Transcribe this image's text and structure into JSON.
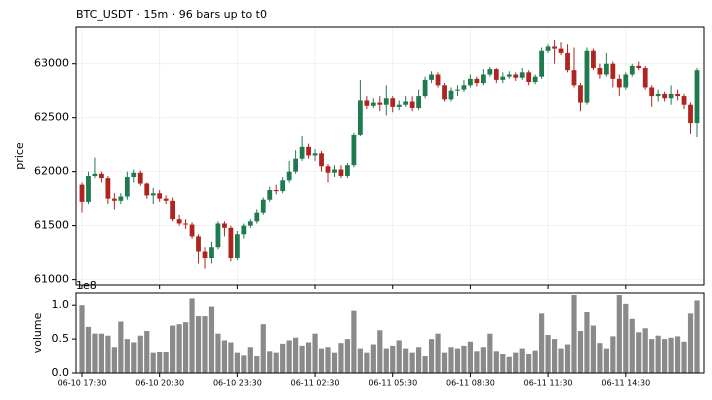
{
  "chart_data": {
    "type": "candlestick",
    "title": "BTC_USDT  ·  15m  ·  96 bars up to t0",
    "ylabel": "price",
    "categories": [
      "06-10 17:30",
      null,
      null,
      null,
      null,
      null,
      null,
      null,
      null,
      null,
      null,
      null,
      "06-10 20:30",
      null,
      null,
      null,
      null,
      null,
      null,
      null,
      null,
      null,
      null,
      null,
      "06-10 23:30",
      null,
      null,
      null,
      null,
      null,
      null,
      null,
      null,
      null,
      null,
      null,
      "06-11 02:30",
      null,
      null,
      null,
      null,
      null,
      null,
      null,
      null,
      null,
      null,
      null,
      "06-11 05:30",
      null,
      null,
      null,
      null,
      null,
      null,
      null,
      null,
      null,
      null,
      null,
      "06-11 08:30",
      null,
      null,
      null,
      null,
      null,
      null,
      null,
      null,
      null,
      null,
      null,
      "06-11 11:30",
      null,
      null,
      null,
      null,
      null,
      null,
      null,
      null,
      null,
      null,
      null,
      "06-11 14:30",
      null,
      null,
      null,
      null,
      null,
      null,
      null,
      null,
      null,
      null,
      null
    ],
    "open": [
      61880,
      61720,
      61960,
      61980,
      61940,
      61750,
      61730,
      61770,
      61950,
      61990,
      61890,
      61780,
      61800,
      61750,
      61730,
      61560,
      61520,
      61510,
      61400,
      61260,
      61200,
      61300,
      61520,
      61480,
      61200,
      61420,
      61500,
      61540,
      61620,
      61740,
      61830,
      61820,
      61920,
      62000,
      62120,
      62230,
      62150,
      62170,
      62050,
      61990,
      62020,
      61960,
      62060,
      62340,
      62660,
      62610,
      62640,
      62620,
      62680,
      62600,
      62620,
      62650,
      62590,
      62700,
      62850,
      62900,
      62800,
      62670,
      62750,
      62760,
      62800,
      62860,
      62820,
      62900,
      62950,
      62850,
      62880,
      62900,
      62870,
      62920,
      62830,
      62880,
      63120,
      63160,
      63140,
      63100,
      62940,
      62800,
      62640,
      63120,
      62960,
      62900,
      63000,
      62860,
      62780,
      62900,
      62980,
      62960,
      62780,
      62700,
      62720,
      62680,
      62720,
      62700,
      62620,
      62450
    ],
    "high": [
      61900,
      62000,
      62130,
      62000,
      61960,
      61800,
      61800,
      62000,
      62020,
      62010,
      61900,
      61850,
      61830,
      61780,
      61760,
      61600,
      61560,
      61530,
      61420,
      61300,
      61350,
      61540,
      61540,
      61500,
      61450,
      61520,
      61560,
      61650,
      61760,
      61860,
      61880,
      61950,
      62100,
      62200,
      62330,
      62260,
      62210,
      62190,
      62070,
      62060,
      62060,
      62080,
      62360,
      62850,
      62700,
      62680,
      62700,
      62800,
      62700,
      62660,
      62700,
      62700,
      62760,
      62880,
      62930,
      62920,
      62820,
      62780,
      62800,
      62850,
      62900,
      62880,
      62950,
      62970,
      62960,
      62920,
      62930,
      62920,
      62960,
      62940,
      62900,
      63150,
      63180,
      63220,
      63200,
      63180,
      63150,
      62820,
      63150,
      63140,
      63000,
      63100,
      63020,
      62900,
      62920,
      63000,
      63020,
      62980,
      62800,
      62760,
      62740,
      62800,
      62760,
      62720,
      62640,
      62960
    ],
    "low": [
      61620,
      61700,
      61940,
      61900,
      61700,
      61650,
      61700,
      61740,
      61900,
      61870,
      61750,
      61700,
      61720,
      61700,
      61540,
      61500,
      61470,
      61380,
      61150,
      61100,
      61150,
      61280,
      61400,
      61170,
      61180,
      61380,
      61480,
      61520,
      61600,
      61720,
      61790,
      61800,
      61900,
      61980,
      62100,
      62120,
      62100,
      62000,
      61900,
      61950,
      61940,
      61940,
      62040,
      62330,
      62580,
      62590,
      62560,
      62520,
      62550,
      62570,
      62600,
      62560,
      62570,
      62680,
      62820,
      62780,
      62650,
      62650,
      62700,
      62740,
      62780,
      62790,
      62800,
      62880,
      62820,
      62820,
      62860,
      62840,
      62850,
      62800,
      62810,
      62860,
      63100,
      63000,
      63080,
      62920,
      62780,
      62560,
      62620,
      62940,
      62860,
      62880,
      62780,
      62700,
      62760,
      62880,
      62940,
      62760,
      62600,
      62650,
      62650,
      62620,
      62660,
      62580,
      62350,
      62320
    ],
    "close": [
      61720,
      61960,
      61980,
      61940,
      61750,
      61730,
      61770,
      61950,
      61990,
      61890,
      61780,
      61800,
      61750,
      61730,
      61560,
      61520,
      61510,
      61400,
      61260,
      61200,
      61300,
      61520,
      61480,
      61200,
      61420,
      61500,
      61540,
      61620,
      61740,
      61830,
      61820,
      61920,
      62000,
      62120,
      62230,
      62150,
      62170,
      62050,
      61990,
      62020,
      61960,
      62060,
      62340,
      62660,
      62610,
      62640,
      62620,
      62680,
      62600,
      62620,
      62650,
      62590,
      62700,
      62850,
      62900,
      62800,
      62670,
      62750,
      62760,
      62800,
      62860,
      62820,
      62900,
      62950,
      62850,
      62880,
      62900,
      62870,
      62920,
      62830,
      62880,
      63120,
      63160,
      63140,
      63100,
      62940,
      62800,
      62640,
      63120,
      62960,
      62900,
      63000,
      62860,
      62780,
      62900,
      62980,
      62960,
      62780,
      62700,
      62720,
      62680,
      62720,
      62700,
      62620,
      62450,
      62940
    ],
    "up_color": "#1f7a4f",
    "down_color": "#b0241f",
    "ylim": [
      60950,
      63340
    ],
    "yticks": [
      61000,
      61500,
      62000,
      62500,
      63000
    ],
    "grid": true,
    "volume": {
      "label": "volume",
      "scale_label": "1e8",
      "color": "#8a8a8a",
      "values": [
        1.0,
        0.68,
        0.58,
        0.58,
        0.55,
        0.38,
        0.76,
        0.5,
        0.45,
        0.55,
        0.62,
        0.3,
        0.31,
        0.31,
        0.7,
        0.72,
        0.75,
        1.1,
        0.84,
        0.84,
        0.98,
        0.58,
        0.48,
        0.45,
        0.3,
        0.26,
        0.38,
        0.25,
        0.72,
        0.32,
        0.3,
        0.43,
        0.48,
        0.52,
        0.4,
        0.45,
        0.58,
        0.36,
        0.38,
        0.3,
        0.44,
        0.5,
        0.92,
        0.36,
        0.3,
        0.42,
        0.63,
        0.36,
        0.4,
        0.48,
        0.36,
        0.3,
        0.38,
        0.25,
        0.5,
        0.58,
        0.3,
        0.38,
        0.36,
        0.4,
        0.46,
        0.32,
        0.38,
        0.58,
        0.32,
        0.28,
        0.24,
        0.3,
        0.36,
        0.28,
        0.33,
        0.88,
        0.56,
        0.5,
        0.36,
        0.42,
        1.15,
        0.62,
        0.9,
        0.7,
        0.44,
        0.36,
        0.54,
        1.15,
        1.02,
        0.8,
        0.6,
        0.66,
        0.5,
        0.55,
        0.5,
        0.52,
        0.54,
        0.46,
        0.88,
        1.07
      ],
      "ylim": [
        0,
        1.18
      ],
      "yticks": [
        {
          "value": 0,
          "label": "0.0"
        },
        0.5,
        {
          "value": 1,
          "label": "1.0"
        }
      ]
    }
  }
}
